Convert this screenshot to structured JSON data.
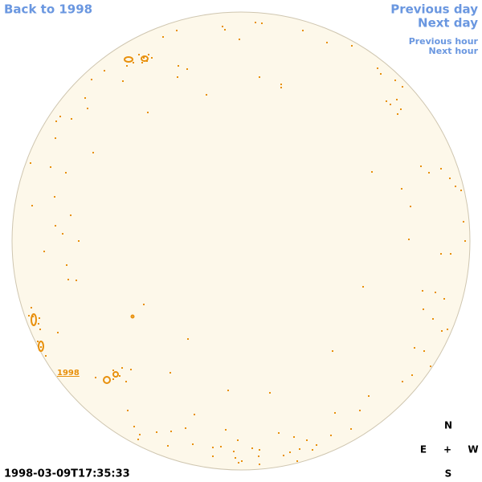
{
  "navigation": {
    "back": "Back to 1998",
    "previous_day": "Previous day",
    "next_day": "Next day",
    "previous_hour": "Previous hour",
    "next_hour": "Next hour"
  },
  "disk": {
    "label": "1998"
  },
  "timestamp": "1998-03-09T17:35:33",
  "compass": {
    "north": "N",
    "east": "E",
    "center": "+",
    "west": "W",
    "south": "S"
  }
}
